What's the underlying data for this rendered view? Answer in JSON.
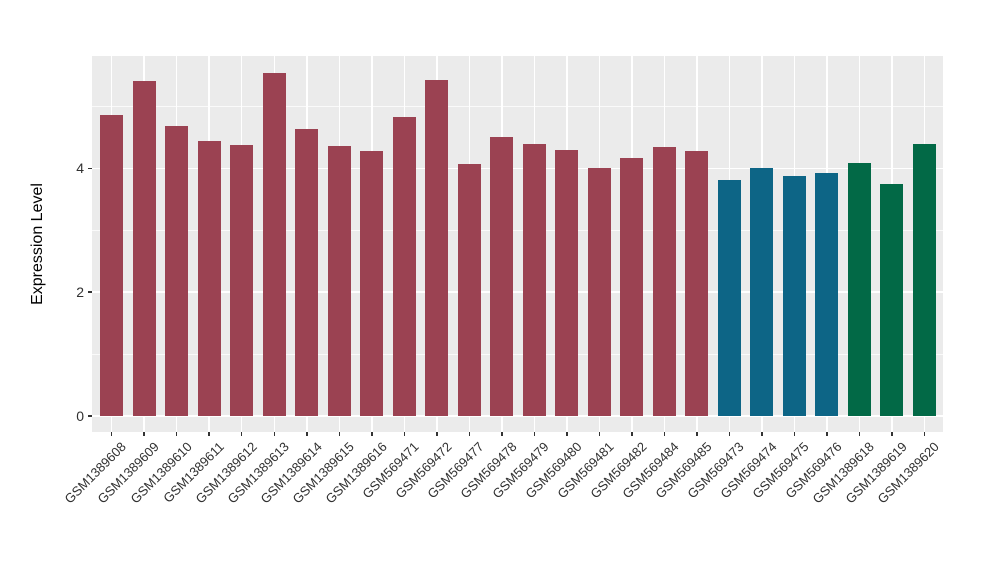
{
  "chart_data": {
    "type": "bar",
    "title": "",
    "xlabel": "",
    "ylabel": "Expression Level",
    "ylim": [
      0,
      5.82
    ],
    "yticks": [
      0,
      2,
      4
    ],
    "yminor": [
      1,
      3,
      5
    ],
    "grid": true,
    "legend": "none",
    "panel_bg": "#EBEBEB",
    "grid_color": "#FFFFFF",
    "axis_text_color": "#303030",
    "palette": {
      "maroon": "#9B4252",
      "teal": "#0D6586",
      "green": "#026946"
    },
    "samples": [
      {
        "id": "GSM1389608",
        "value": 4.87,
        "group": "maroon"
      },
      {
        "id": "GSM1389609",
        "value": 5.42,
        "group": "maroon"
      },
      {
        "id": "GSM1389610",
        "value": 4.69,
        "group": "maroon"
      },
      {
        "id": "GSM1389611",
        "value": 4.44,
        "group": "maroon"
      },
      {
        "id": "GSM1389612",
        "value": 4.38,
        "group": "maroon"
      },
      {
        "id": "GSM1389613",
        "value": 5.54,
        "group": "maroon"
      },
      {
        "id": "GSM1389614",
        "value": 4.63,
        "group": "maroon"
      },
      {
        "id": "GSM1389615",
        "value": 4.36,
        "group": "maroon"
      },
      {
        "id": "GSM1389616",
        "value": 4.28,
        "group": "maroon"
      },
      {
        "id": "GSM569471",
        "value": 4.83,
        "group": "maroon"
      },
      {
        "id": "GSM569472",
        "value": 5.43,
        "group": "maroon"
      },
      {
        "id": "GSM569477",
        "value": 4.07,
        "group": "maroon"
      },
      {
        "id": "GSM569478",
        "value": 4.51,
        "group": "maroon"
      },
      {
        "id": "GSM569479",
        "value": 4.4,
        "group": "maroon"
      },
      {
        "id": "GSM569480",
        "value": 4.29,
        "group": "maroon"
      },
      {
        "id": "GSM569481",
        "value": 4.0,
        "group": "maroon"
      },
      {
        "id": "GSM569482",
        "value": 4.16,
        "group": "maroon"
      },
      {
        "id": "GSM569484",
        "value": 4.34,
        "group": "maroon"
      },
      {
        "id": "GSM569485",
        "value": 4.28,
        "group": "maroon"
      },
      {
        "id": "GSM569473",
        "value": 3.81,
        "group": "teal"
      },
      {
        "id": "GSM569474",
        "value": 4.0,
        "group": "teal"
      },
      {
        "id": "GSM569475",
        "value": 3.88,
        "group": "teal"
      },
      {
        "id": "GSM569476",
        "value": 3.93,
        "group": "teal"
      },
      {
        "id": "GSM1389618",
        "value": 4.09,
        "group": "green"
      },
      {
        "id": "GSM1389619",
        "value": 3.75,
        "group": "green"
      },
      {
        "id": "GSM1389620",
        "value": 4.4,
        "group": "green"
      }
    ]
  }
}
